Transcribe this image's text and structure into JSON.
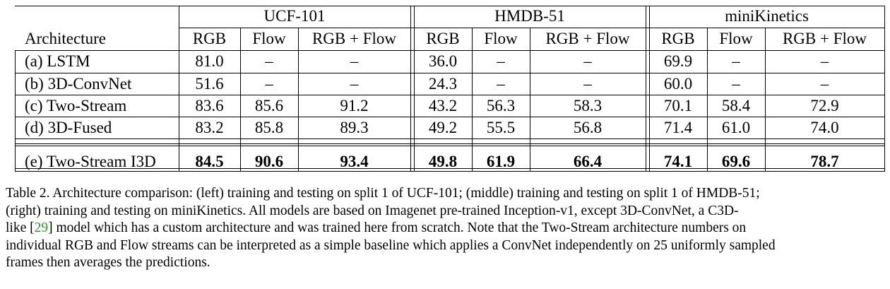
{
  "table": {
    "group_headers": [
      "UCF-101",
      "HMDB-51",
      "miniKinetics"
    ],
    "arch_header": "Architecture",
    "sub_headers": [
      "RGB",
      "Flow",
      "RGB + Flow"
    ],
    "rows": [
      {
        "arch": "(a) LSTM",
        "ucf": [
          "81.0",
          "–",
          "–"
        ],
        "hmdb": [
          "36.0",
          "–",
          "–"
        ],
        "kin": [
          "69.9",
          "–",
          "–"
        ],
        "bold": false
      },
      {
        "arch": "(b) 3D-ConvNet",
        "ucf": [
          "51.6",
          "–",
          "–"
        ],
        "hmdb": [
          "24.3",
          "–",
          "–"
        ],
        "kin": [
          "60.0",
          "–",
          "–"
        ],
        "bold": false
      },
      {
        "arch": "(c) Two-Stream",
        "ucf": [
          "83.6",
          "85.6",
          "91.2"
        ],
        "hmdb": [
          "43.2",
          "56.3",
          "58.3"
        ],
        "kin": [
          "70.1",
          "58.4",
          "72.9"
        ],
        "bold": false
      },
      {
        "arch": "(d) 3D-Fused",
        "ucf": [
          "83.2",
          "85.8",
          "89.3"
        ],
        "hmdb": [
          "49.2",
          "55.5",
          "56.8"
        ],
        "kin": [
          "71.4",
          "61.0",
          "74.0"
        ],
        "bold": false
      },
      {
        "arch": "(e) Two-Stream I3D",
        "ucf": [
          "84.5",
          "90.6",
          "93.4"
        ],
        "hmdb": [
          "49.8",
          "61.9",
          "66.4"
        ],
        "kin": [
          "74.1",
          "69.6",
          "78.7"
        ],
        "bold": true
      }
    ]
  },
  "caption": {
    "line1": "Table 2. Architecture comparison: (left) training and testing on split 1 of UCF-101; (middle) training and testing on split 1 of HMDB-51;",
    "line2": "(right) training and testing on miniKinetics.  All models are based on Imagenet pre-trained Inception-v1, except 3D-ConvNet, a C3D-",
    "line3_a": "like [",
    "line3_ref": "29",
    "line3_b": "] model which has a custom architecture and was trained here from scratch.  Note that the Two-Stream architecture numbers on",
    "line4": "individual RGB and Flow streams can be interpreted as a simple baseline which applies a ConvNet independently on 25 uniformly sampled",
    "line5": "frames then averages the predictions."
  }
}
